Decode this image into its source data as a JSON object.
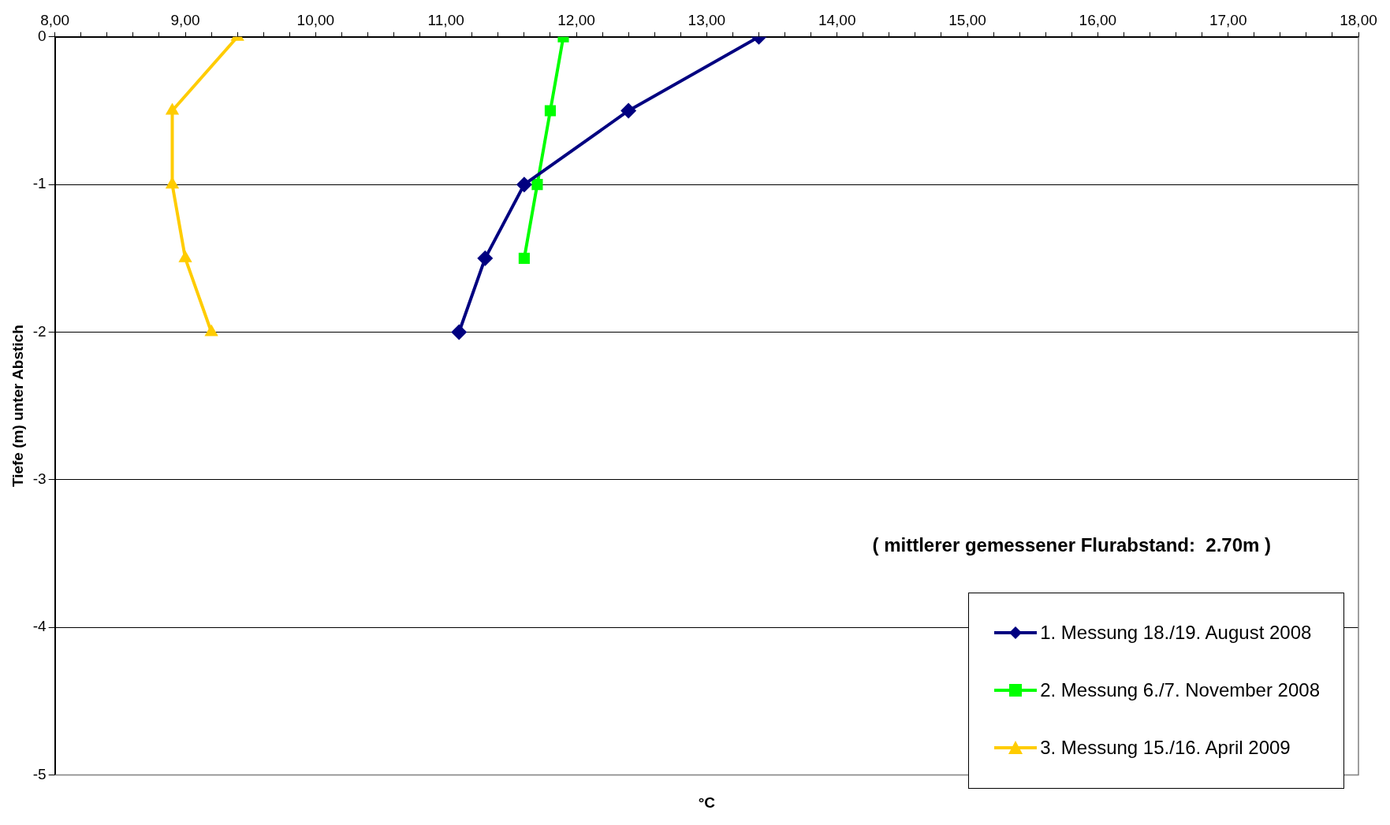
{
  "chart_data": {
    "type": "line",
    "xlabel": "°C",
    "ylabel": "Tiefe (m) unter Abstich",
    "xlim": [
      8,
      18
    ],
    "xticks": [
      {
        "value": 8,
        "label": "8,00"
      },
      {
        "value": 8.2,
        "label": null
      },
      {
        "value": 8.4,
        "label": null
      },
      {
        "value": 8.6,
        "label": null
      },
      {
        "value": 8.8,
        "label": null
      },
      {
        "value": 9,
        "label": "9,00"
      },
      {
        "value": 9.2,
        "label": null
      },
      {
        "value": 9.4,
        "label": null
      },
      {
        "value": 9.6,
        "label": null
      },
      {
        "value": 9.8,
        "label": null
      },
      {
        "value": 10,
        "label": "10,00"
      },
      {
        "value": 10.2,
        "label": null
      },
      {
        "value": 10.4,
        "label": null
      },
      {
        "value": 10.6,
        "label": null
      },
      {
        "value": 10.8,
        "label": null
      },
      {
        "value": 11,
        "label": "11,00"
      },
      {
        "value": 11.2,
        "label": null
      },
      {
        "value": 11.4,
        "label": null
      },
      {
        "value": 11.6,
        "label": null
      },
      {
        "value": 11.8,
        "label": null
      },
      {
        "value": 12,
        "label": "12,00"
      },
      {
        "value": 12.2,
        "label": null
      },
      {
        "value": 12.4,
        "label": null
      },
      {
        "value": 12.6,
        "label": null
      },
      {
        "value": 12.8,
        "label": null
      },
      {
        "value": 13,
        "label": "13,00"
      },
      {
        "value": 13.2,
        "label": null
      },
      {
        "value": 13.4,
        "label": null
      },
      {
        "value": 13.6,
        "label": null
      },
      {
        "value": 13.8,
        "label": null
      },
      {
        "value": 14,
        "label": "14,00"
      },
      {
        "value": 14.2,
        "label": null
      },
      {
        "value": 14.4,
        "label": null
      },
      {
        "value": 14.6,
        "label": null
      },
      {
        "value": 14.8,
        "label": null
      },
      {
        "value": 15,
        "label": "15,00"
      },
      {
        "value": 15.2,
        "label": null
      },
      {
        "value": 15.4,
        "label": null
      },
      {
        "value": 15.6,
        "label": null
      },
      {
        "value": 15.8,
        "label": null
      },
      {
        "value": 16,
        "label": "16,00"
      },
      {
        "value": 16.2,
        "label": null
      },
      {
        "value": 16.4,
        "label": null
      },
      {
        "value": 16.6,
        "label": null
      },
      {
        "value": 16.8,
        "label": null
      },
      {
        "value": 17,
        "label": "17,00"
      },
      {
        "value": 17.2,
        "label": null
      },
      {
        "value": 17.4,
        "label": null
      },
      {
        "value": 17.6,
        "label": null
      },
      {
        "value": 17.8,
        "label": null
      },
      {
        "value": 18,
        "label": "18,00"
      }
    ],
    "ylim": [
      -5,
      0
    ],
    "yticks": [
      0,
      -1,
      -2,
      -3,
      -4,
      -5
    ],
    "series": [
      {
        "name": "1. Messung 18./19. August 2008",
        "color": "#000080",
        "marker": "diamond",
        "x": [
          13.4,
          12.4,
          11.6,
          11.3,
          11.1
        ],
        "values": [
          0,
          -0.5,
          -1,
          -1.5,
          -2
        ]
      },
      {
        "name": "2. Messung 6./7. November 2008",
        "color": "#00ff00",
        "marker": "square",
        "x": [
          11.9,
          11.8,
          11.7,
          11.6
        ],
        "values": [
          0,
          -0.5,
          -1,
          -1.5
        ]
      },
      {
        "name": "3. Messung 15./16. April 2009",
        "color": "#ffcc00",
        "marker": "triangle",
        "x": [
          9.4,
          8.9,
          8.9,
          9.0,
          9.2
        ],
        "values": [
          0,
          -0.5,
          -1,
          -1.5,
          -2
        ]
      }
    ],
    "annotations": [
      "( mittlerer gemessener Flurabstand:  2.70m )"
    ],
    "grid": "y",
    "legend": "bottom right",
    "line_style": "solid"
  }
}
